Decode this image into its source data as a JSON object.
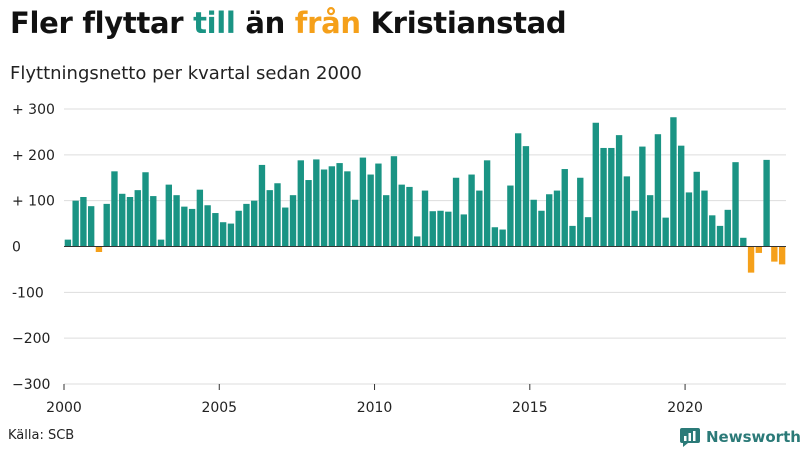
{
  "header": {
    "title_parts": [
      "Fler flyttar ",
      "till",
      " än ",
      "från",
      " Kristianstad"
    ],
    "subtitle": "Flyttningsnetto per kvartal sedan 2000"
  },
  "footer": {
    "source": "Källa: SCB",
    "brand": "Newsworthy"
  },
  "colors": {
    "positive": "#1a9484",
    "negative": "#f5a01a",
    "grid": "#dddddd",
    "brand": "#2b7a78"
  },
  "icons": {
    "brand": "bar-chart-speech-icon"
  },
  "chart_data": {
    "type": "bar",
    "title": "Fler flyttar till än från Kristianstad",
    "subtitle": "Flyttningsnetto per kvartal sedan 2000",
    "x_start": "2000 Q1",
    "x_step": "quarter",
    "xlim": [
      "2000-01-01",
      "2023-04-01"
    ],
    "ylim": [
      -300,
      300
    ],
    "x_ticks": [
      {
        "label": "2000",
        "value": 2000
      },
      {
        "label": "2005",
        "value": 2005
      },
      {
        "label": "2010",
        "value": 2010
      },
      {
        "label": "2015",
        "value": 2015
      },
      {
        "label": "2020",
        "value": 2020
      }
    ],
    "y_ticks": [
      {
        "label": "+ 300",
        "value": 300
      },
      {
        "label": "+ 200",
        "value": 200
      },
      {
        "label": "+ 100",
        "value": 100
      },
      {
        "label": "0",
        "value": 0
      },
      {
        "label": "-100",
        "value": -100
      },
      {
        "label": "−200",
        "value": -200
      },
      {
        "label": "−300",
        "value": -300
      }
    ],
    "grid": true,
    "values": [
      15,
      100,
      108,
      88,
      -12,
      93,
      164,
      115,
      108,
      123,
      162,
      110,
      15,
      135,
      112,
      87,
      82,
      124,
      90,
      73,
      53,
      50,
      78,
      93,
      100,
      178,
      123,
      138,
      85,
      112,
      188,
      145,
      190,
      168,
      175,
      182,
      164,
      102,
      194,
      157,
      181,
      112,
      197,
      135,
      130,
      22,
      122,
      77,
      78,
      76,
      150,
      70,
      157,
      122,
      188,
      42,
      37,
      133,
      247,
      219,
      102,
      78,
      114,
      122,
      169,
      45,
      150,
      64,
      270,
      215,
      215,
      243,
      153,
      78,
      218,
      112,
      245,
      63,
      282,
      220,
      118,
      163,
      122,
      68,
      45,
      80,
      184,
      19,
      -57,
      -14,
      189,
      -33,
      -39
    ]
  }
}
